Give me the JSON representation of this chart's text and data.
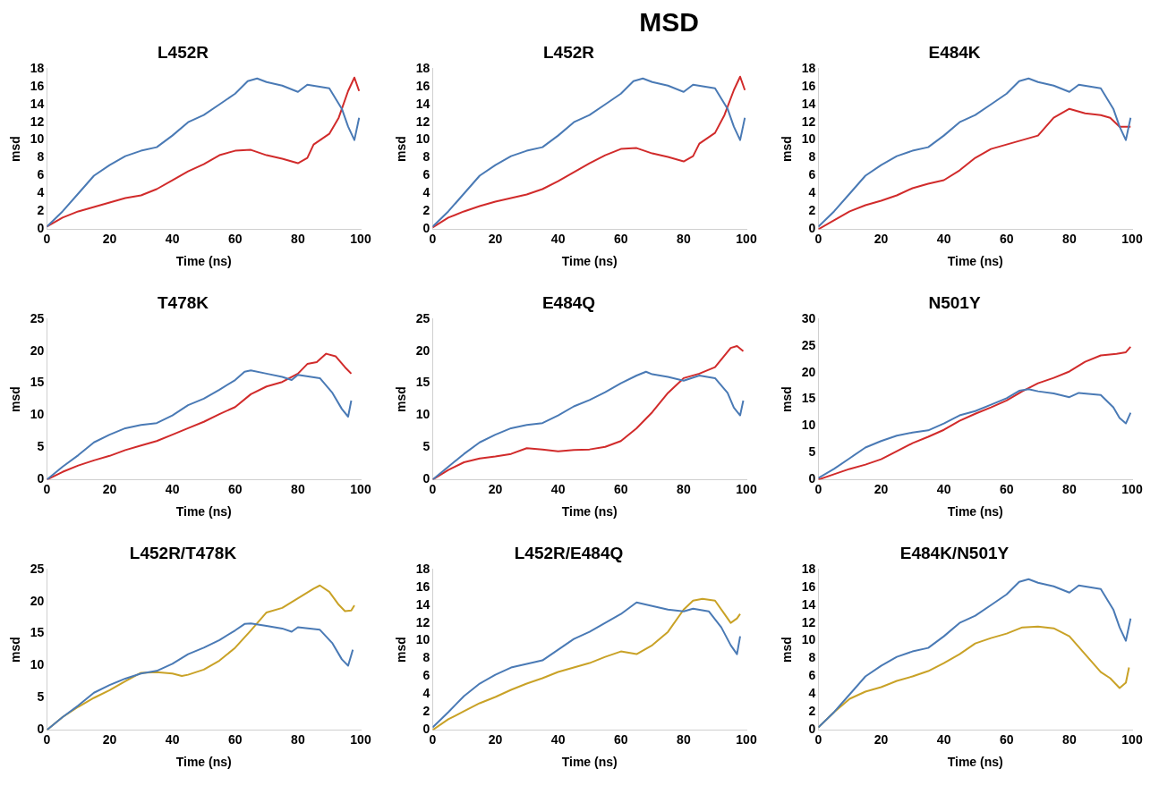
{
  "chart_data": [
    {
      "type": "other",
      "title": "MSD"
    },
    {
      "type": "line",
      "title": "L452R",
      "xlabel": "Time (ns)",
      "ylabel": "msd",
      "xlim": [
        0,
        100
      ],
      "xticks": [
        0,
        20,
        40,
        60,
        80,
        100
      ],
      "ylim": [
        0,
        18
      ],
      "yticks": [
        0,
        2,
        4,
        6,
        8,
        10,
        12,
        14,
        16,
        18
      ],
      "grid": false,
      "marker": "none",
      "series": [
        {
          "color": "#4a7ab5",
          "x": [
            0,
            5,
            10,
            15,
            20,
            25,
            30,
            35,
            40,
            45,
            50,
            55,
            60,
            64,
            67,
            70,
            75,
            80,
            83,
            90,
            94,
            96,
            98,
            99.5
          ],
          "values": [
            0.3,
            2,
            4,
            6,
            7.2,
            8.2,
            8.8,
            9.2,
            10.5,
            12,
            12.8,
            14,
            15.2,
            16.6,
            16.9,
            16.5,
            16.1,
            15.4,
            16.2,
            15.8,
            13.5,
            11.5,
            10,
            12.5
          ]
        },
        {
          "color": "#d12b2b",
          "x": [
            0,
            5,
            10,
            15,
            20,
            25,
            30,
            35,
            40,
            45,
            50,
            55,
            60,
            65,
            70,
            75,
            80,
            83,
            85,
            90,
            93,
            96,
            98,
            99.5
          ],
          "values": [
            0.3,
            1.3,
            2,
            2.5,
            3,
            3.5,
            3.8,
            4.5,
            5.5,
            6.5,
            7.3,
            8.3,
            8.8,
            8.9,
            8.3,
            7.9,
            7.4,
            8,
            9.5,
            10.7,
            12.5,
            15.5,
            17,
            15.5
          ]
        }
      ]
    },
    {
      "type": "line",
      "title": "L452R",
      "xlabel": "Time (ns)",
      "ylabel": "msd",
      "xlim": [
        0,
        100
      ],
      "xticks": [
        0,
        20,
        40,
        60,
        80,
        100
      ],
      "ylim": [
        0,
        18
      ],
      "yticks": [
        0,
        2,
        4,
        6,
        8,
        10,
        12,
        14,
        16,
        18
      ],
      "grid": false,
      "marker": "none",
      "series": [
        {
          "color": "#4a7ab5",
          "x": [
            0,
            5,
            10,
            15,
            20,
            25,
            30,
            35,
            40,
            45,
            50,
            55,
            60,
            64,
            67,
            70,
            75,
            80,
            83,
            90,
            94,
            96,
            98,
            99.5
          ],
          "values": [
            0.3,
            2,
            4,
            6,
            7.2,
            8.2,
            8.8,
            9.2,
            10.5,
            12,
            12.8,
            14,
            15.2,
            16.6,
            16.9,
            16.5,
            16.1,
            15.4,
            16.2,
            15.8,
            13.5,
            11.5,
            10,
            12.5
          ]
        },
        {
          "color": "#d12b2b",
          "x": [
            0,
            5,
            10,
            15,
            20,
            25,
            30,
            35,
            40,
            45,
            50,
            55,
            60,
            65,
            70,
            75,
            80,
            83,
            85,
            90,
            93,
            96,
            98,
            99.5
          ],
          "values": [
            0.2,
            1.3,
            2,
            2.6,
            3.1,
            3.5,
            3.9,
            4.5,
            5.4,
            6.4,
            7.4,
            8.3,
            9,
            9.1,
            8.5,
            8.1,
            7.6,
            8.2,
            9.6,
            10.8,
            12.8,
            15.6,
            17.1,
            15.6
          ]
        }
      ]
    },
    {
      "type": "line",
      "title": "E484K",
      "xlabel": "Time (ns)",
      "ylabel": "msd",
      "xlim": [
        0,
        100
      ],
      "xticks": [
        0,
        20,
        40,
        60,
        80,
        100
      ],
      "ylim": [
        0,
        18
      ],
      "yticks": [
        0,
        2,
        4,
        6,
        8,
        10,
        12,
        14,
        16,
        18
      ],
      "grid": false,
      "marker": "none",
      "series": [
        {
          "color": "#4a7ab5",
          "x": [
            0,
            5,
            10,
            15,
            20,
            25,
            30,
            35,
            40,
            45,
            50,
            55,
            60,
            64,
            67,
            70,
            75,
            80,
            83,
            90,
            94,
            96,
            98,
            99.5
          ],
          "values": [
            0.3,
            2,
            4,
            6,
            7.2,
            8.2,
            8.8,
            9.2,
            10.5,
            12,
            12.8,
            14,
            15.2,
            16.6,
            16.9,
            16.5,
            16.1,
            15.4,
            16.2,
            15.8,
            13.5,
            11.5,
            10,
            12.5
          ]
        },
        {
          "color": "#d12b2b",
          "x": [
            0,
            5,
            10,
            15,
            20,
            25,
            30,
            35,
            40,
            45,
            50,
            55,
            60,
            65,
            70,
            75,
            80,
            85,
            90,
            93,
            96,
            99.5
          ],
          "values": [
            0,
            1,
            2,
            2.7,
            3.2,
            3.8,
            4.6,
            5.1,
            5.5,
            6.6,
            8,
            9,
            9.5,
            10,
            10.5,
            12.5,
            13.5,
            13,
            12.8,
            12.5,
            11.5,
            11.5
          ]
        }
      ]
    },
    {
      "type": "line",
      "title": "T478K",
      "xlabel": "Time (ns)",
      "ylabel": "msd",
      "xlim": [
        0,
        100
      ],
      "xticks": [
        0,
        20,
        40,
        60,
        80,
        100
      ],
      "ylim": [
        0,
        25
      ],
      "yticks": [
        0,
        5,
        10,
        15,
        20,
        25
      ],
      "grid": false,
      "marker": "none",
      "series": [
        {
          "color": "#4a7ab5",
          "x": [
            0,
            5,
            10,
            15,
            20,
            25,
            30,
            35,
            40,
            45,
            50,
            55,
            60,
            63,
            65,
            70,
            75,
            78,
            80,
            87,
            91,
            94,
            96,
            97
          ],
          "values": [
            0,
            2,
            3.8,
            5.8,
            7,
            8,
            8.5,
            8.8,
            10,
            11.6,
            12.6,
            14,
            15.5,
            16.8,
            17,
            16.5,
            16,
            15.5,
            16.3,
            15.8,
            13.5,
            11,
            9.8,
            12.3
          ]
        },
        {
          "color": "#d12b2b",
          "x": [
            0,
            5,
            10,
            15,
            20,
            25,
            30,
            35,
            40,
            45,
            50,
            55,
            60,
            65,
            70,
            75,
            80,
            83,
            86,
            89,
            92,
            95,
            97
          ],
          "values": [
            0,
            1.2,
            2.2,
            3,
            3.7,
            4.6,
            5.3,
            6,
            7,
            8,
            9,
            10.2,
            11.3,
            13.3,
            14.5,
            15.2,
            16.5,
            18,
            18.3,
            19.6,
            19.2,
            17.5,
            16.5
          ]
        }
      ]
    },
    {
      "type": "line",
      "title": "E484Q",
      "xlabel": "Time (ns)",
      "ylabel": "msd",
      "xlim": [
        0,
        100
      ],
      "xticks": [
        0,
        20,
        40,
        60,
        80,
        100
      ],
      "ylim": [
        0,
        25
      ],
      "yticks": [
        0,
        5,
        10,
        15,
        20,
        25
      ],
      "grid": false,
      "marker": "none",
      "series": [
        {
          "color": "#4a7ab5",
          "x": [
            0,
            5,
            10,
            15,
            20,
            25,
            30,
            35,
            40,
            45,
            50,
            55,
            60,
            65,
            68,
            70,
            75,
            80,
            85,
            90,
            94,
            96,
            98,
            99
          ],
          "values": [
            0,
            2,
            4,
            5.8,
            7,
            8,
            8.5,
            8.8,
            10,
            11.4,
            12.4,
            13.6,
            15,
            16.2,
            16.8,
            16.4,
            16,
            15.4,
            16.2,
            15.8,
            13.5,
            11.2,
            10,
            12.3
          ]
        },
        {
          "color": "#d12b2b",
          "x": [
            0,
            5,
            10,
            15,
            20,
            25,
            30,
            35,
            40,
            45,
            50,
            55,
            60,
            65,
            70,
            75,
            80,
            85,
            90,
            95,
            97,
            99
          ],
          "values": [
            0,
            1.5,
            2.7,
            3.3,
            3.6,
            4,
            4.9,
            4.7,
            4.4,
            4.6,
            4.7,
            5.1,
            6,
            8,
            10.5,
            13.5,
            15.8,
            16.5,
            17.5,
            20.5,
            20.8,
            20
          ]
        }
      ]
    },
    {
      "type": "line",
      "title": "N501Y",
      "xlabel": "Time (ns)",
      "ylabel": "msd",
      "xlim": [
        0,
        100
      ],
      "xticks": [
        0,
        20,
        40,
        60,
        80,
        100
      ],
      "ylim": [
        0,
        30
      ],
      "yticks": [
        0,
        5,
        10,
        15,
        20,
        25,
        30
      ],
      "grid": false,
      "marker": "none",
      "series": [
        {
          "color": "#4a7ab5",
          "x": [
            0,
            5,
            10,
            15,
            20,
            25,
            30,
            35,
            40,
            45,
            50,
            55,
            60,
            64,
            67,
            70,
            75,
            80,
            83,
            90,
            94,
            96,
            98,
            99.5
          ],
          "values": [
            0.3,
            2,
            4,
            6,
            7.2,
            8.2,
            8.8,
            9.2,
            10.5,
            12,
            12.8,
            14,
            15.2,
            16.6,
            16.9,
            16.5,
            16.1,
            15.4,
            16.2,
            15.8,
            13.5,
            11.5,
            10.5,
            12.5
          ]
        },
        {
          "color": "#d12b2b",
          "x": [
            0,
            5,
            10,
            15,
            20,
            25,
            30,
            35,
            40,
            45,
            50,
            55,
            60,
            65,
            70,
            75,
            80,
            85,
            90,
            95,
            98,
            99.5
          ],
          "values": [
            0,
            1,
            2,
            2.8,
            3.8,
            5.3,
            6.8,
            8,
            9.3,
            11,
            12.3,
            13.5,
            14.8,
            16.5,
            18,
            19,
            20.2,
            22,
            23.2,
            23.5,
            23.8,
            24.8
          ]
        }
      ]
    },
    {
      "type": "line",
      "title": "L452R/T478K",
      "xlabel": "Time (ns)",
      "ylabel": "msd",
      "xlim": [
        0,
        100
      ],
      "xticks": [
        0,
        20,
        40,
        60,
        80,
        100
      ],
      "ylim": [
        0,
        25
      ],
      "yticks": [
        0,
        5,
        10,
        15,
        20,
        25
      ],
      "grid": false,
      "marker": "none",
      "series": [
        {
          "color": "#4a7ab5",
          "x": [
            0,
            5,
            10,
            15,
            20,
            25,
            30,
            35,
            40,
            45,
            50,
            55,
            60,
            63,
            65,
            70,
            75,
            78,
            80,
            87,
            91,
            94,
            96,
            97.5
          ],
          "values": [
            0,
            2,
            3.8,
            5.8,
            7,
            8,
            8.8,
            9.2,
            10.3,
            11.8,
            12.8,
            14,
            15.5,
            16.5,
            16.6,
            16.2,
            15.8,
            15.3,
            16,
            15.6,
            13.5,
            11,
            10,
            12.5
          ]
        },
        {
          "color": "#c9a227",
          "x": [
            0,
            5,
            10,
            15,
            20,
            25,
            30,
            35,
            40,
            43,
            45,
            50,
            55,
            60,
            65,
            70,
            75,
            80,
            85,
            87,
            90,
            93,
            95,
            97,
            98
          ],
          "values": [
            0,
            2,
            3.6,
            5,
            6.2,
            7.6,
            8.9,
            9,
            8.8,
            8.4,
            8.6,
            9.4,
            10.8,
            12.8,
            15.5,
            18.3,
            19,
            20.5,
            22,
            22.5,
            21.5,
            19.5,
            18.5,
            18.6,
            19.4
          ]
        }
      ]
    },
    {
      "type": "line",
      "title": "L452R/E484Q",
      "xlabel": "Time (ns)",
      "ylabel": "msd",
      "xlim": [
        0,
        100
      ],
      "xticks": [
        0,
        20,
        40,
        60,
        80,
        100
      ],
      "ylim": [
        0,
        18
      ],
      "yticks": [
        0,
        2,
        4,
        6,
        8,
        10,
        12,
        14,
        16,
        18
      ],
      "grid": false,
      "marker": "none",
      "series": [
        {
          "color": "#4a7ab5",
          "x": [
            0,
            5,
            10,
            15,
            20,
            25,
            30,
            35,
            40,
            45,
            50,
            55,
            60,
            65,
            70,
            75,
            80,
            83,
            88,
            92,
            95,
            97,
            98
          ],
          "values": [
            0.3,
            2,
            3.8,
            5.2,
            6.2,
            7,
            7.4,
            7.8,
            9,
            10.2,
            11,
            12,
            13,
            14.3,
            13.9,
            13.5,
            13.3,
            13.6,
            13.3,
            11.5,
            9.5,
            8.5,
            10.5
          ]
        },
        {
          "color": "#c9a227",
          "x": [
            0,
            5,
            10,
            15,
            20,
            25,
            30,
            35,
            40,
            45,
            50,
            55,
            60,
            65,
            70,
            75,
            80,
            83,
            86,
            90,
            93,
            95,
            97,
            98
          ],
          "values": [
            0,
            1.2,
            2.1,
            3,
            3.7,
            4.5,
            5.2,
            5.8,
            6.5,
            7,
            7.5,
            8.2,
            8.8,
            8.5,
            9.5,
            11,
            13.5,
            14.5,
            14.7,
            14.5,
            13,
            12,
            12.5,
            13
          ]
        }
      ]
    },
    {
      "type": "line",
      "title": "E484K/N501Y",
      "xlabel": "Time (ns)",
      "ylabel": "msd",
      "xlim": [
        0,
        100
      ],
      "xticks": [
        0,
        20,
        40,
        60,
        80,
        100
      ],
      "ylim": [
        0,
        18
      ],
      "yticks": [
        0,
        2,
        4,
        6,
        8,
        10,
        12,
        14,
        16,
        18
      ],
      "grid": false,
      "marker": "none",
      "series": [
        {
          "color": "#4a7ab5",
          "x": [
            0,
            5,
            10,
            15,
            20,
            25,
            30,
            35,
            40,
            45,
            50,
            55,
            60,
            64,
            67,
            70,
            75,
            80,
            83,
            90,
            94,
            96,
            98,
            99.5
          ],
          "values": [
            0.3,
            2,
            4,
            6,
            7.2,
            8.2,
            8.8,
            9.2,
            10.5,
            12,
            12.8,
            14,
            15.2,
            16.6,
            16.9,
            16.5,
            16.1,
            15.4,
            16.2,
            15.8,
            13.5,
            11.5,
            10,
            12.5
          ]
        },
        {
          "color": "#c9a227",
          "x": [
            0,
            5,
            10,
            15,
            20,
            25,
            30,
            35,
            40,
            45,
            50,
            55,
            60,
            65,
            70,
            75,
            80,
            85,
            90,
            93,
            96,
            98,
            99
          ],
          "values": [
            0.3,
            2,
            3.5,
            4.3,
            4.8,
            5.5,
            6,
            6.6,
            7.5,
            8.5,
            9.7,
            10.3,
            10.8,
            11.5,
            11.6,
            11.4,
            10.5,
            8.5,
            6.5,
            5.8,
            4.7,
            5.3,
            7
          ]
        }
      ]
    }
  ]
}
